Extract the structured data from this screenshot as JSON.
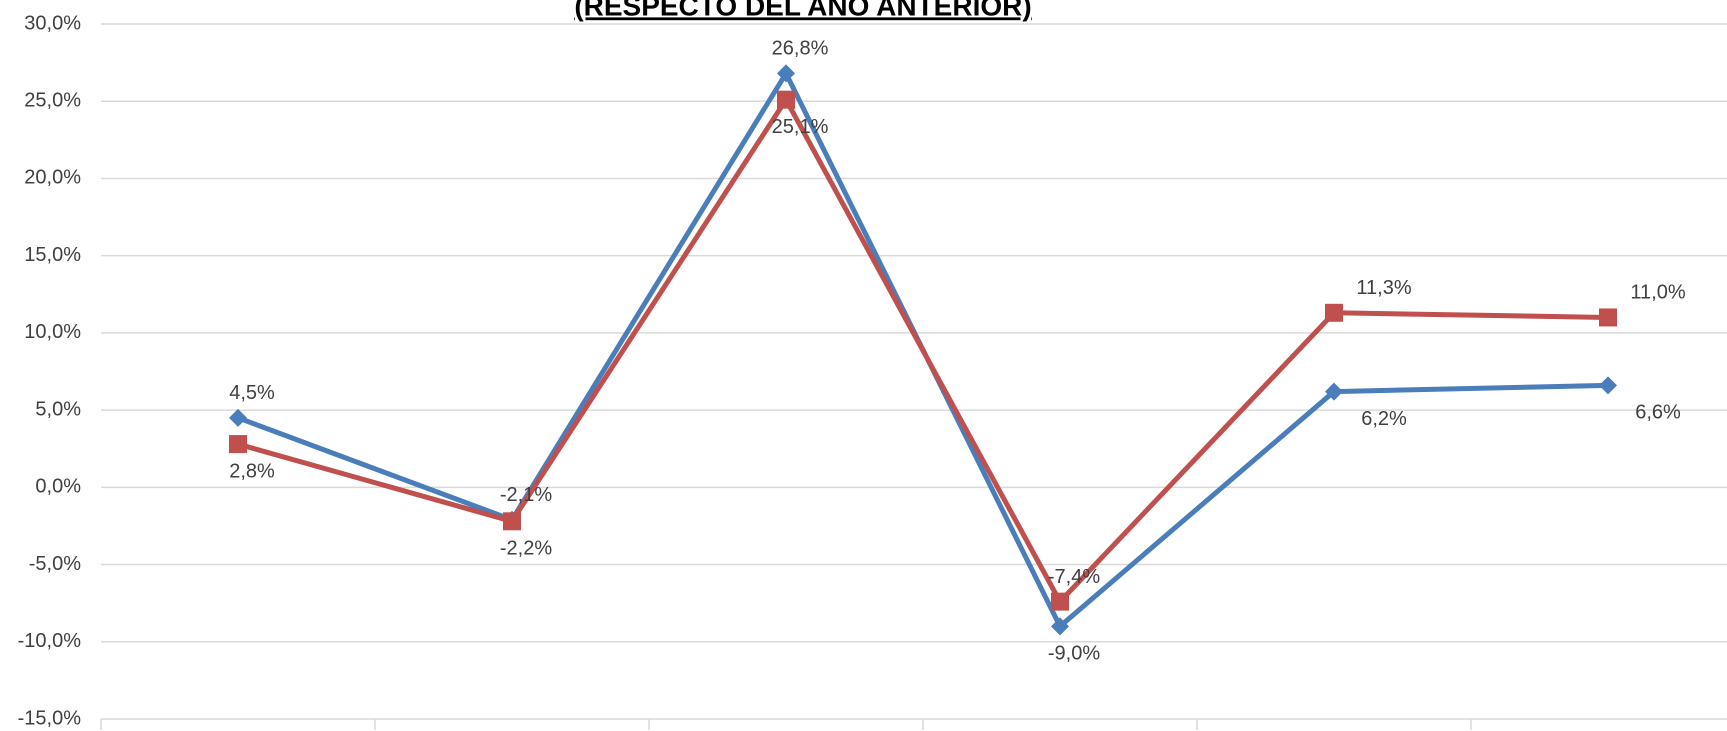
{
  "chart_data": {
    "type": "line",
    "title": "(RESPECTO DEL AÑO ANTERIOR)",
    "categories": [
      null,
      null,
      null,
      null,
      null,
      null
    ],
    "series": [
      {
        "color": "#4a7ebb",
        "values": [
          4.5,
          -2.1,
          26.8,
          -9.0,
          6.2,
          6.6
        ],
        "value_labels": [
          "4,5%",
          "-2,1%",
          "26,8%",
          "-9,0%",
          "6,2%",
          "6,6%"
        ]
      },
      {
        "color": "#c0504d",
        "values": [
          2.8,
          -2.2,
          25.1,
          -7.4,
          11.3,
          11.0
        ],
        "value_labels": [
          "2,8%",
          "-2,2%",
          "25,1%",
          "-7,4%",
          "11,3%",
          "11,0%"
        ]
      }
    ],
    "ylim": [
      -15,
      30
    ],
    "yticks": [
      {
        "value": -15,
        "label": "-15,0%"
      },
      {
        "value": -10,
        "label": "-10,0%"
      },
      {
        "value": -5,
        "label": "-5,0%"
      },
      {
        "value": 0,
        "label": "0,0%"
      },
      {
        "value": 5,
        "label": "5,0%"
      },
      {
        "value": 10,
        "label": "10,0%"
      },
      {
        "value": 15,
        "label": "15,0%"
      },
      {
        "value": 20,
        "label": "20,0%"
      },
      {
        "value": 25,
        "label": "25,0%"
      },
      {
        "value": 30,
        "label": "30,0%"
      }
    ],
    "grid": true
  }
}
